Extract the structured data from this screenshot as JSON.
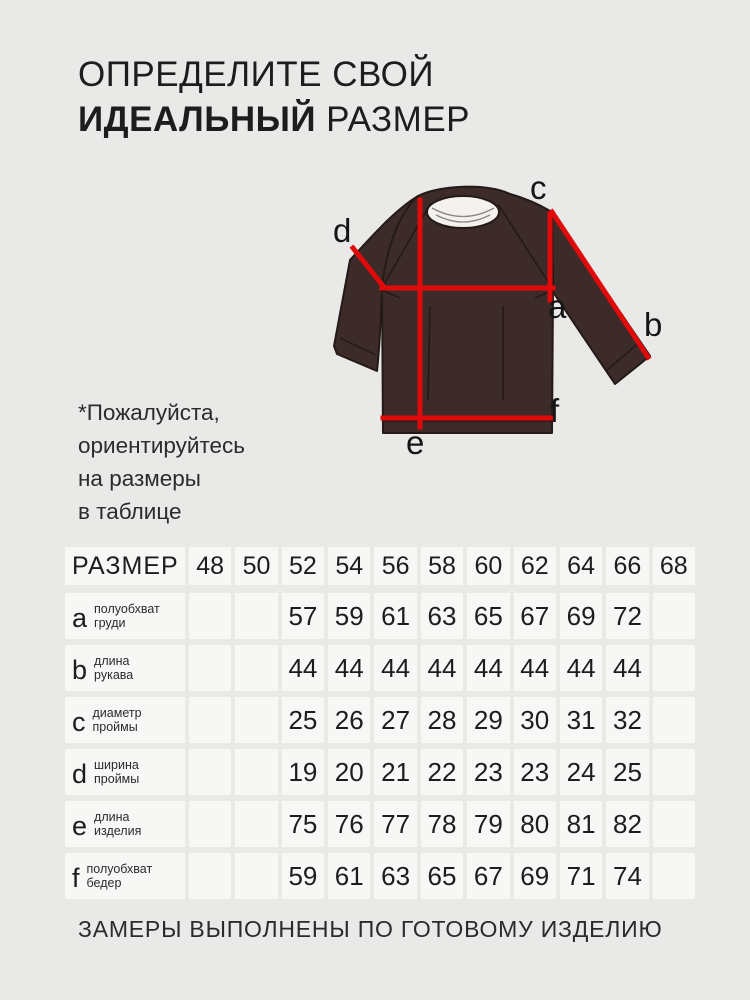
{
  "colors": {
    "page_bg": "#e9e9e8",
    "cell_bg": "#f7f7f6",
    "text": "#1d1d1d",
    "measure_line_red": "#e00a0a",
    "garment_brown": "#3c2b28",
    "collar_white": "#f4f2ef"
  },
  "title": {
    "line1": "ОПРЕДЕЛИТЕ СВОЙ",
    "line2_bold": "ИДЕАЛЬНЫЙ",
    "line2_regular": "РАЗМЕР"
  },
  "note": {
    "lines": [
      "*Пожалуйста,",
      "ориентируйтесь",
      "на размеры",
      "в таблице"
    ]
  },
  "diagram": {
    "labels": [
      "a",
      "b",
      "c",
      "d",
      "e",
      "f"
    ]
  },
  "table": {
    "header": {
      "label": "РАЗМЕР",
      "sizes": [
        "48",
        "50",
        "52",
        "54",
        "56",
        "58",
        "60",
        "62",
        "64",
        "66",
        "68"
      ]
    },
    "rows": [
      {
        "letter": "a",
        "name_line1": "полуобхват",
        "name_line2": "груди",
        "values": [
          "",
          "",
          "57",
          "59",
          "61",
          "63",
          "65",
          "67",
          "69",
          "72",
          ""
        ]
      },
      {
        "letter": "b",
        "name_line1": "длина",
        "name_line2": "рукава",
        "values": [
          "",
          "",
          "44",
          "44",
          "44",
          "44",
          "44",
          "44",
          "44",
          "44",
          ""
        ]
      },
      {
        "letter": "c",
        "name_line1": "диаметр",
        "name_line2": "проймы",
        "values": [
          "",
          "",
          "25",
          "26",
          "27",
          "28",
          "29",
          "30",
          "31",
          "32",
          ""
        ]
      },
      {
        "letter": "d",
        "name_line1": "ширина",
        "name_line2": "проймы",
        "values": [
          "",
          "",
          "19",
          "20",
          "21",
          "22",
          "23",
          "23",
          "24",
          "25",
          ""
        ]
      },
      {
        "letter": "e",
        "name_line1": "длина",
        "name_line2": "изделия",
        "values": [
          "",
          "",
          "75",
          "76",
          "77",
          "78",
          "79",
          "80",
          "81",
          "82",
          ""
        ]
      },
      {
        "letter": "f",
        "name_line1": "полуобхват",
        "name_line2": "бедер",
        "values": [
          "",
          "",
          "59",
          "61",
          "63",
          "65",
          "67",
          "69",
          "71",
          "74",
          ""
        ]
      }
    ]
  },
  "footer": {
    "text": "ЗАМЕРЫ ВЫПОЛНЕНЫ ПО ГОТОВОМУ ИЗДЕЛИЮ"
  }
}
